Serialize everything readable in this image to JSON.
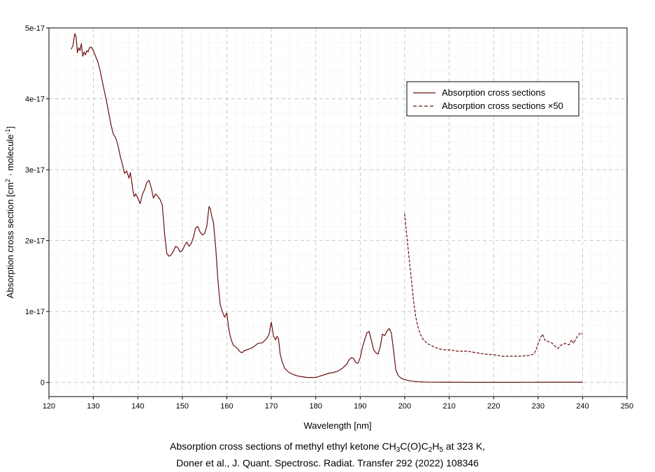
{
  "chart_data": {
    "type": "line",
    "xlabel": "Wavelength [nm]",
    "ylabel": {
      "main": "Absorption cross section [cm",
      "sup1": "2",
      "mid": " · molecule",
      "sup2": "-1",
      "end": "]"
    },
    "xlim": [
      120,
      250
    ],
    "ylim": [
      -2e-18,
      5e-17
    ],
    "x_ticks": [
      120,
      130,
      140,
      150,
      160,
      170,
      180,
      190,
      200,
      210,
      220,
      230,
      240,
      250
    ],
    "x_tick_labels": [
      "120",
      "130",
      "140",
      "150",
      "160",
      "170",
      "180",
      "190",
      "200",
      "210",
      "220",
      "230",
      "240",
      "250"
    ],
    "y_ticks": [
      0,
      1e-17,
      2e-17,
      3e-17,
      4e-17,
      5e-17
    ],
    "y_tick_labels": [
      "0",
      "1e-17",
      "2e-17",
      "3e-17",
      "4e-17",
      "5e-17"
    ],
    "grid": true,
    "legend_position": "top-right",
    "series": [
      {
        "name": "Absorption cross sections",
        "style": "solid",
        "color": "#6b0f0f",
        "x": [
          125.0,
          125.4,
          125.8,
          126.1,
          126.4,
          126.7,
          127.0,
          127.3,
          127.6,
          127.9,
          128.2,
          128.5,
          128.8,
          129.1,
          129.5,
          130.0,
          130.5,
          131.0,
          131.5,
          132.0,
          132.5,
          133.0,
          133.5,
          134.0,
          134.5,
          135.0,
          135.5,
          136.0,
          136.5,
          137.0,
          137.5,
          138.0,
          138.3,
          138.6,
          138.9,
          139.2,
          139.5,
          140.0,
          140.5,
          141.0,
          141.5,
          142.0,
          142.5,
          143.0,
          143.5,
          144.0,
          144.5,
          145.0,
          145.5,
          146.0,
          146.5,
          147.0,
          147.5,
          148.0,
          148.5,
          149.0,
          149.5,
          150.0,
          150.5,
          151.0,
          151.5,
          152.0,
          152.5,
          153.0,
          153.5,
          154.0,
          154.5,
          155.0,
          155.5,
          156.0,
          156.3,
          156.6,
          157.0,
          157.5,
          158.0,
          158.5,
          159.0,
          159.5,
          160.0,
          160.3,
          160.6,
          161.0,
          161.5,
          162.0,
          162.5,
          163.0,
          163.5,
          164.0,
          165.0,
          166.0,
          167.0,
          168.0,
          169.0,
          169.5,
          170.0,
          170.5,
          171.0,
          171.3,
          171.6,
          172.0,
          172.5,
          173.0,
          174.0,
          175.0,
          176.0,
          177.0,
          178.0,
          179.0,
          180.0,
          181.0,
          182.0,
          183.0,
          184.0,
          185.0,
          186.0,
          187.0,
          187.5,
          188.0,
          188.5,
          189.0,
          189.5,
          190.0,
          190.5,
          191.0,
          191.5,
          192.0,
          192.5,
          193.0,
          193.5,
          194.0,
          194.5,
          195.0,
          195.5,
          196.0,
          196.5,
          197.0,
          197.5,
          198.0,
          198.5,
          199.0,
          199.5,
          200.0,
          201.0,
          202.0,
          203.0,
          205.0,
          210.0,
          215.0,
          220.0,
          225.0,
          230.0,
          235.0,
          240.0
        ],
        "y": [
          4.7e-17,
          4.75e-17,
          4.92e-17,
          4.88e-17,
          4.65e-17,
          4.72e-17,
          4.68e-17,
          4.78e-17,
          4.6e-17,
          4.66e-17,
          4.62e-17,
          4.68e-17,
          4.66e-17,
          4.72e-17,
          4.73e-17,
          4.68e-17,
          4.6e-17,
          4.52e-17,
          4.4e-17,
          4.25e-17,
          4.1e-17,
          3.95e-17,
          3.78e-17,
          3.62e-17,
          3.5e-17,
          3.45e-17,
          3.35e-17,
          3.2e-17,
          3.08e-17,
          2.95e-17,
          2.98e-17,
          2.88e-17,
          2.96e-17,
          2.85e-17,
          2.7e-17,
          2.62e-17,
          2.66e-17,
          2.6e-17,
          2.52e-17,
          2.65e-17,
          2.72e-17,
          2.82e-17,
          2.85e-17,
          2.75e-17,
          2.6e-17,
          2.66e-17,
          2.62e-17,
          2.58e-17,
          2.5e-17,
          2.1e-17,
          1.82e-17,
          1.78e-17,
          1.8e-17,
          1.85e-17,
          1.92e-17,
          1.9e-17,
          1.84e-17,
          1.86e-17,
          1.93e-17,
          1.98e-17,
          1.92e-17,
          1.96e-17,
          2.05e-17,
          2.18e-17,
          2.2e-17,
          2.12e-17,
          2.08e-17,
          2.1e-17,
          2.2e-17,
          2.48e-17,
          2.45e-17,
          2.35e-17,
          2.25e-17,
          1.9e-17,
          1.45e-17,
          1.1e-17,
          1e-17,
          9.2e-18,
          9.8e-18,
          8.2e-18,
          7e-18,
          6e-18,
          5.2e-18,
          5e-18,
          4.7e-18,
          4.3e-18,
          4.2e-18,
          4.5e-18,
          4.7e-18,
          5e-18,
          5.5e-18,
          5.6e-18,
          6.2e-18,
          6.8e-18,
          8.5e-18,
          6.5e-18,
          6e-18,
          6.5e-18,
          6.2e-18,
          4e-18,
          2.8e-18,
          2e-18,
          1.4e-18,
          1.1e-18,
          9e-19,
          8e-19,
          7e-19,
          7e-19,
          7e-19,
          9e-19,
          1.1e-18,
          1.3e-18,
          1.4e-18,
          1.6e-18,
          2e-18,
          2.6e-18,
          3.2e-18,
          3.5e-18,
          3.4e-18,
          2.8e-18,
          2.7e-18,
          3.5e-18,
          5e-18,
          6e-18,
          7e-18,
          7.2e-18,
          6e-18,
          4.6e-18,
          4.2e-18,
          4e-18,
          5e-18,
          6.8e-18,
          6.6e-18,
          7.2e-18,
          7.6e-18,
          7e-18,
          4.5e-18,
          1.8e-18,
          1e-18,
          7e-19,
          5e-19,
          4e-19,
          2.5e-19,
          1.5e-19,
          1e-19,
          5e-20,
          3e-20,
          2e-20,
          2e-20,
          2e-20,
          3e-20,
          3e-20,
          3e-20
        ]
      },
      {
        "name": "Absorption cross sections ×50",
        "style": "dashed",
        "color": "#6b0f0f",
        "x": [
          200.0,
          200.5,
          201.0,
          201.5,
          202.0,
          202.5,
          203.0,
          203.5,
          204.0,
          205.0,
          206.0,
          207.0,
          208.0,
          209.0,
          210.0,
          212.0,
          214.0,
          216.0,
          218.0,
          220.0,
          222.0,
          224.0,
          226.0,
          228.0,
          229.0,
          229.5,
          230.0,
          230.5,
          231.0,
          231.5,
          232.0,
          233.0,
          234.0,
          234.5,
          235.0,
          236.0,
          237.0,
          237.5,
          238.0,
          238.5,
          239.0,
          239.5,
          240.0
        ],
        "y": [
          2.38e-17,
          2.05e-17,
          1.75e-17,
          1.45e-17,
          1.15e-17,
          9.2e-18,
          7.8e-18,
          6.8e-18,
          6.2e-18,
          5.5e-18,
          5.2e-18,
          4.9e-18,
          4.7e-18,
          4.6e-18,
          4.6e-18,
          4.4e-18,
          4.4e-18,
          4.2e-18,
          4e-18,
          3.9e-18,
          3.7e-18,
          3.7e-18,
          3.7e-18,
          3.8e-18,
          4e-18,
          4.5e-18,
          5.5e-18,
          6.2e-18,
          6.8e-18,
          6e-18,
          5.8e-18,
          5.6e-18,
          5e-18,
          4.8e-18,
          5.2e-18,
          5.5e-18,
          5.3e-18,
          6e-18,
          5.5e-18,
          6.2e-18,
          6.6e-18,
          7e-18,
          6.8e-18
        ]
      }
    ]
  },
  "caption": {
    "line1_prefix": "Absorption cross sections of methyl ethyl ketone CH",
    "sub1": "3",
    "mid1": "C(O)C",
    "sub2": "2",
    "mid2": "H",
    "sub3": "5",
    "line1_suffix": " at 323 K,",
    "line2": "Doner et al., J. Quant. Spectrosc. Radiat. Transfer 292 (2022) 108346"
  }
}
